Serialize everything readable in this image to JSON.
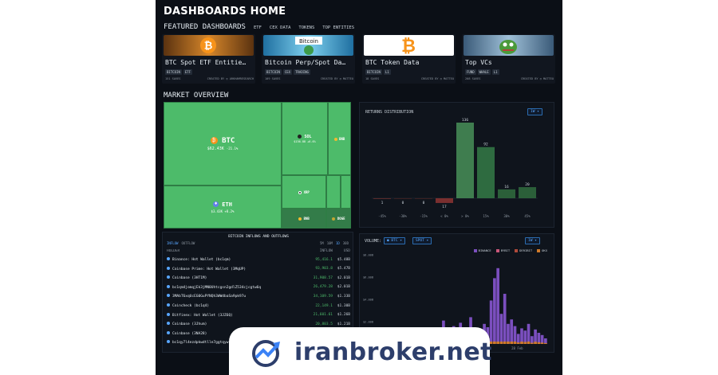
{
  "header": {
    "title": "DASHBOARDS HOME"
  },
  "featured": {
    "title": "FEATURED DASHBOARDS",
    "tabs": [
      "ETF",
      "CEX DATA",
      "TOKENS",
      "TOP ENTITIES"
    ],
    "cards": [
      {
        "title": "BTC Spot ETF Entitie…",
        "tags": [
          "BITCOIN",
          "ETF"
        ],
        "saves": "151 SAVES",
        "created": "CREATED BY ◎ ARKHAMRESEARCH",
        "thumb_color": "#d6862a"
      },
      {
        "title": "Bitcoin Perp/Spot Da…",
        "tags": [
          "BITCOIN",
          "CEX",
          "TRADING"
        ],
        "saves": "109 SAVES",
        "created": "CREATED BY ◎ MATTEO",
        "thumb_color": "#2aa7d6"
      },
      {
        "title": "BTC Token Data",
        "tags": [
          "BITCOIN",
          "L1"
        ],
        "saves": "18 SAVES",
        "created": "CREATED BY ◎ MATTEO",
        "thumb_color": "#f7931a"
      },
      {
        "title": "Top VCs",
        "tags": [
          "FUND",
          "WHALE",
          "L1"
        ],
        "saves": "208 SAVES",
        "created": "CREATED BY ◎ MATTEO",
        "thumb_color": "#4a8fbf"
      }
    ]
  },
  "market": {
    "title": "MARKET OVERVIEW",
    "treemap": {
      "btc": {
        "name": "BTC",
        "price": "$62.43K",
        "change": "-21.1%"
      },
      "eth": {
        "name": "ETH",
        "price": "$3.43K",
        "change": "+8.2%"
      },
      "sol": {
        "name": "SOL",
        "price": "$136.88",
        "change": "+6.6%"
      },
      "bnb": {
        "name": "BNB",
        "price": "",
        "change": ""
      },
      "xrp": {
        "name": "XRP",
        "price": "",
        "change": ""
      },
      "bnb2": {
        "name": "BNB",
        "price": "",
        "change": ""
      },
      "doge": {
        "name": "DOGE",
        "price": "",
        "change": ""
      }
    }
  },
  "returns": {
    "title": "RETURNS DISTRIBUTION",
    "range_button": "1W ▾",
    "chart_data": {
      "type": "bar",
      "categories": [
        "-45%",
        "-30%",
        "-15%",
        "< 0%",
        "> 0%",
        "15%",
        "30%",
        "45%"
      ],
      "values": [
        1,
        0,
        0,
        17,
        136,
        92,
        16,
        20
      ],
      "labels": [
        "1",
        "0",
        "0",
        "17",
        "136",
        "92",
        "16",
        "20"
      ],
      "colors": [
        "#5a2a2a",
        "#3a2020",
        "#3a2020",
        "#7b2f2f",
        "#3f7d4f",
        "#2e6b40",
        "#2b5f39",
        "#2b5f39"
      ]
    }
  },
  "inflows": {
    "title": "BITCOIN INFLOWS AND OUTFLOWS",
    "subtabs": [
      "INFLOW",
      "OUTFLOW"
    ],
    "periods": [
      "5M",
      "10M",
      "1D",
      "30D"
    ],
    "col_holder": "HOLDER",
    "col_inflow": "INFLOW",
    "col_usd": "USD",
    "rows": [
      {
        "name": "Binance: Hot Wallet (bc1qm)",
        "inflow": "95,416.1",
        "usd": "$5.48B"
      },
      {
        "name": "Coinbase Prime: Hot Wallet (3MqUP)",
        "inflow": "93,903.8",
        "usd": "$5.47B"
      },
      {
        "name": "Coinbase (3HT1M)",
        "inflow": "31,908.57",
        "usd": "$2.01B"
      },
      {
        "name": "bc1qm4jomqjEk3jMN0Uhtcgsn2gdlZ534cjcgtw6q",
        "inflow": "26,479.28",
        "usd": "$2.01B"
      },
      {
        "name": "3MAbT6xqUcEG0GuPYNQh3WWdbaSa9pk97u",
        "inflow": "34,109.59",
        "usd": "$1.33B"
      },
      {
        "name": "Coincheck (bc1q4)",
        "inflow": "22,149.1",
        "usd": "$1.30B"
      },
      {
        "name": "Bitfinex: Hot Wallet (3JZ6Q)",
        "inflow": "21,601.61",
        "usd": "$1.26B"
      },
      {
        "name": "Coinbase (3Jhum)",
        "inflow": "20,803.5",
        "usd": "$1.21B"
      },
      {
        "name": "Coinbase (3NA28)",
        "inflow": "19,820.4",
        "usd": "$1.16B"
      },
      {
        "name": "bc1qy7l4ezdpkwdtlle7ggtqyw",
        "inflow": "",
        "usd": ""
      }
    ]
  },
  "volume": {
    "title": "VOLUME:",
    "asset_button": "● BTC ▾",
    "type_button": "SPOT ▾",
    "range_button": "1W ▾",
    "legend": [
      {
        "name": "BINANCE",
        "color": "#7b4fbf"
      },
      {
        "name": "BYBIT",
        "color": "#c9577a"
      },
      {
        "name": "DERIBIT",
        "color": "#b04a3a"
      },
      {
        "name": "OKX",
        "color": "#d07a2a"
      }
    ],
    "chart_data": {
      "type": "bar",
      "ylabels": [
        "$8.00B",
        "$6.00B",
        "$4.00B",
        "$2.00B",
        "$0.00"
      ],
      "xlabel_tick": "28 Feb",
      "values": [
        0.5,
        0.4,
        1.1,
        0.3,
        0.6,
        0.8,
        0.2,
        0.5,
        0.7,
        0.3,
        0.9,
        0.4,
        0.2,
        1.2,
        0.5,
        0.8,
        0.6,
        1.4,
        2.1,
        0.9,
        0.7,
        1.6,
        0.8,
        1.9,
        0.6,
        0.5,
        2.4,
        1.2,
        0.9,
        0.6,
        1.8,
        1.5,
        3.9,
        5.9,
        6.8,
        2.7,
        4.5,
        1.8,
        2.2,
        1.6,
        0.9,
        1.4,
        1.2,
        1.8,
        0.7,
        1.3,
        1.0,
        0.8,
        0.5
      ],
      "ylim": [
        0,
        8
      ]
    }
  },
  "watermark": {
    "text": "iranbroker.net"
  }
}
